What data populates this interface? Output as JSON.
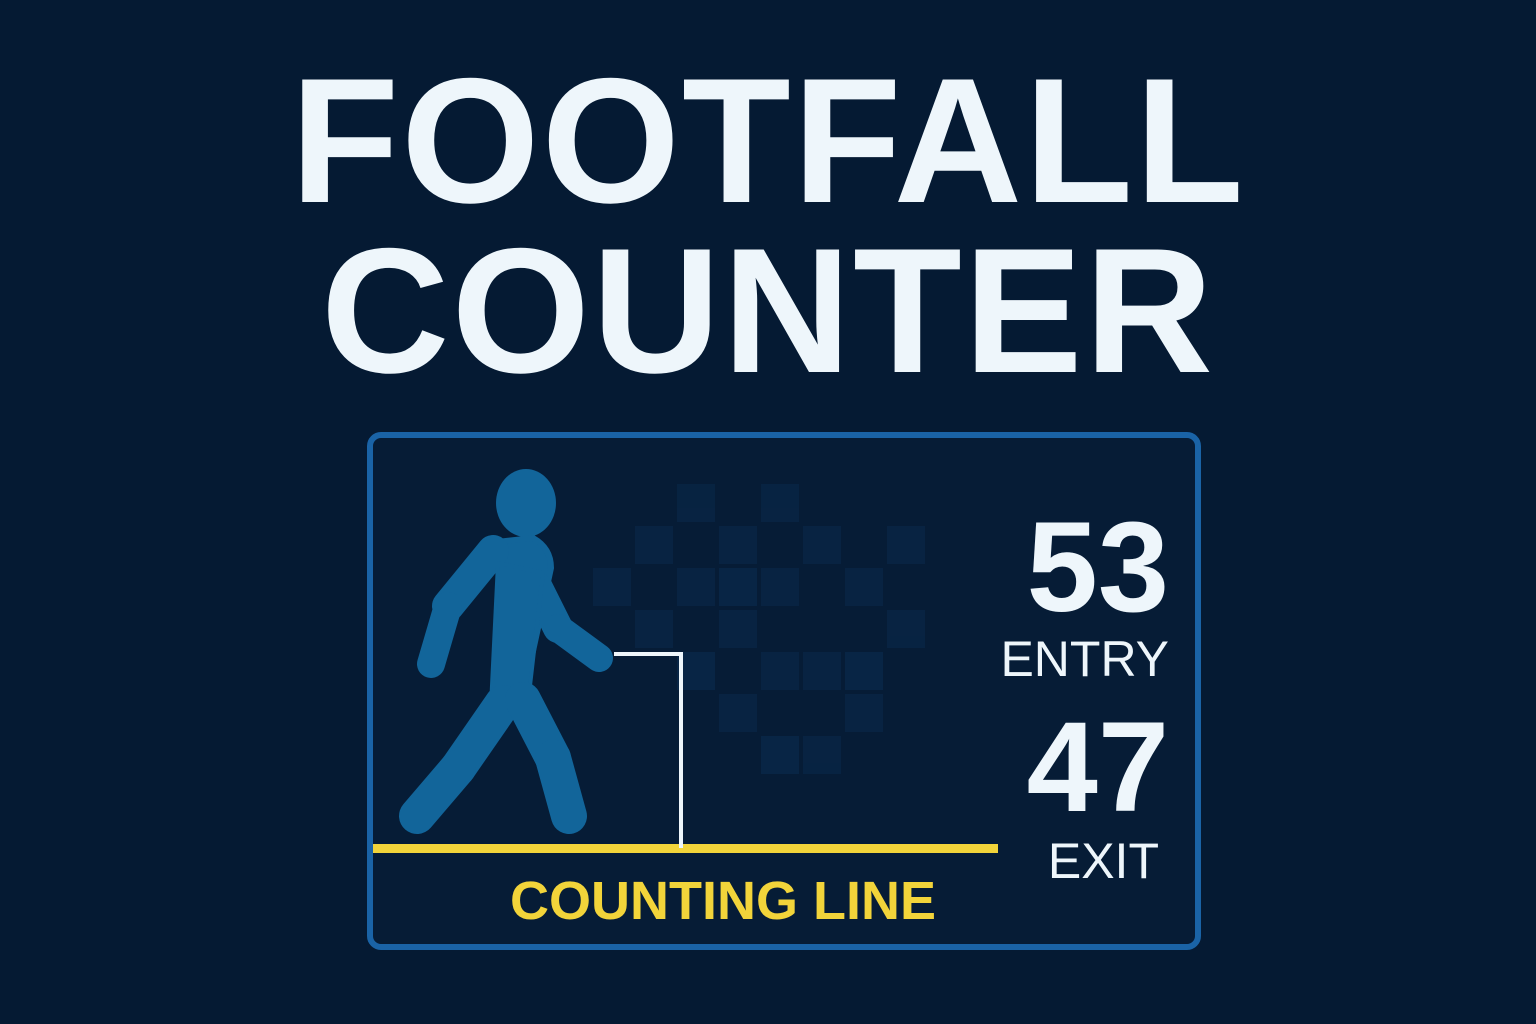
{
  "title": {
    "line1": "FOOTFALL",
    "line2": "COUNTER"
  },
  "counter": {
    "entry_count": "53",
    "entry_label": "ENTRY",
    "exit_count": "47",
    "exit_label": "EXIT"
  },
  "counting_line": {
    "label": "COUNTING LINE"
  },
  "icons": {
    "person": "walking-person-icon"
  },
  "colors": {
    "background": "#051a33",
    "panel_border": "#1a63a6",
    "person": "#12659a",
    "counting_line": "#f2d43a",
    "text": "#eef6fb"
  }
}
